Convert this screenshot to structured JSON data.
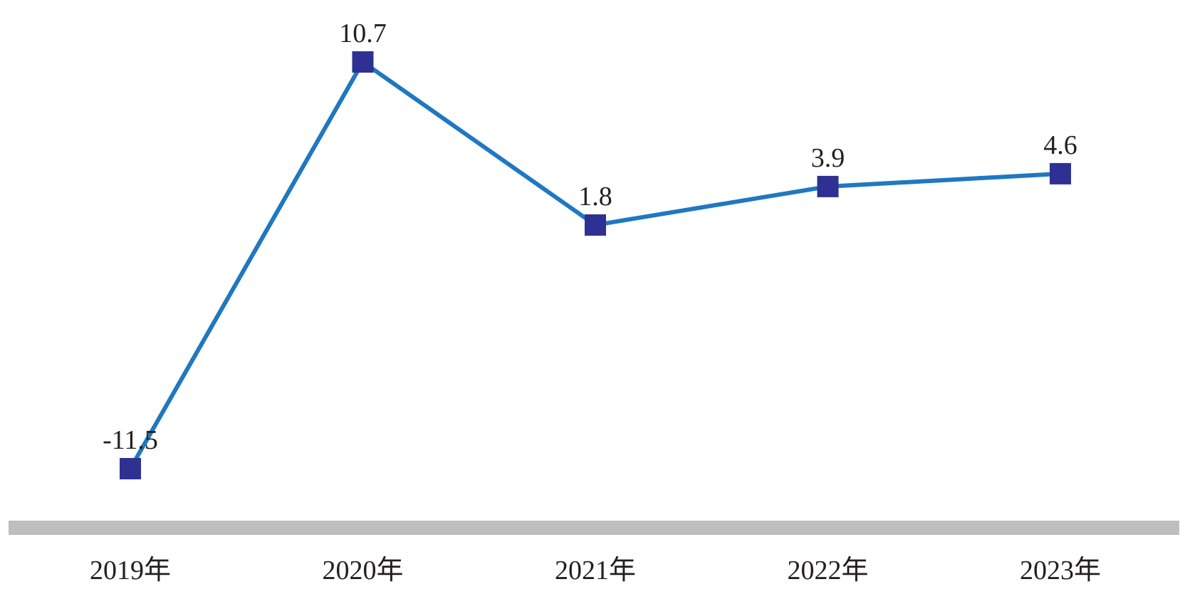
{
  "chart_data": {
    "type": "line",
    "title": "",
    "xlabel": "",
    "ylabel": "",
    "categories": [
      "2019年",
      "2020年",
      "2021年",
      "2022年",
      "2023年"
    ],
    "series": [
      {
        "values": [
          -11.5,
          10.7,
          1.8,
          3.9,
          4.6
        ],
        "labels": [
          "-11.5",
          "10.7",
          "1.8",
          "3.9",
          "4.6"
        ],
        "color": "#1f78c1",
        "marker": "square",
        "marker_color": "#2e3192"
      }
    ],
    "axis_color": "#bcbec0",
    "ylim": [
      -11.5,
      10.7
    ],
    "grid": false,
    "legend": "none"
  }
}
